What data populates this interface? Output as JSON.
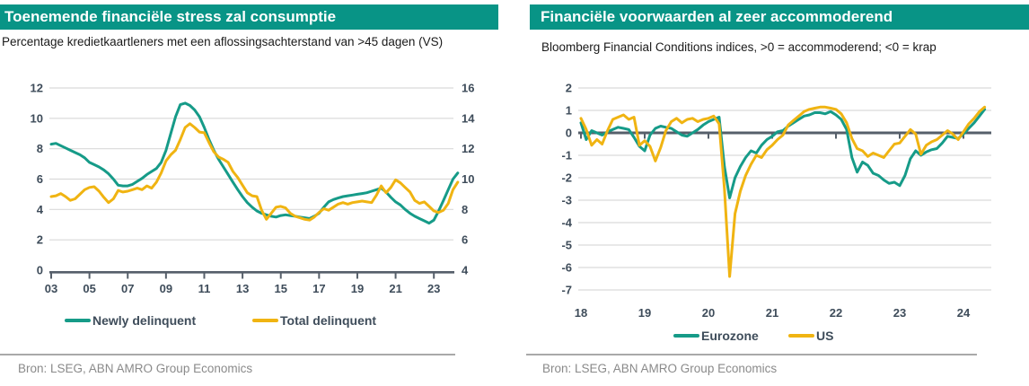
{
  "colors": {
    "brand_teal": "#089486",
    "series_teal": "#169B88",
    "series_yellow": "#F0B412",
    "grid": "#D9D9D9",
    "axis_dark": "#565F6A",
    "tick_label": "#3E4C5A",
    "subtitle_text": "#1A1A1A",
    "source_text": "#8A8A8A",
    "divider": "#A9A9A9",
    "title_text": "#FFFFFF"
  },
  "chart_data": [
    {
      "type": "line",
      "title": "Toenemende financiële stress zal consumptie",
      "subtitle": " Percentage kredietkaartleners met een aflossingsachterstand van >45 dagen (VS)",
      "source": "Bron: LSEG, ABN AMRO Group Economics",
      "legend_position": "bottom",
      "grid": true,
      "left_axis": {
        "min": 0,
        "max": 12,
        "ticks": [
          0,
          2,
          4,
          6,
          8,
          10,
          12
        ]
      },
      "right_axis": {
        "min": 4,
        "max": 16,
        "ticks": [
          4,
          6,
          8,
          10,
          12,
          14,
          16
        ]
      },
      "x_axis": {
        "min": 2003,
        "max": 2024.3,
        "tick_years": [
          2003,
          2005,
          2007,
          2009,
          2011,
          2013,
          2015,
          2017,
          2019,
          2021,
          2023
        ],
        "tick_labels": [
          "03",
          "05",
          "07",
          "09",
          "11",
          "13",
          "15",
          "17",
          "19",
          "21",
          "23"
        ]
      },
      "x": [
        2003,
        2003.25,
        2003.5,
        2003.75,
        2004,
        2004.25,
        2004.5,
        2004.75,
        2005,
        2005.25,
        2005.5,
        2005.75,
        2006,
        2006.25,
        2006.5,
        2006.75,
        2007,
        2007.25,
        2007.5,
        2007.75,
        2008,
        2008.25,
        2008.5,
        2008.75,
        2009,
        2009.25,
        2009.5,
        2009.75,
        2010,
        2010.25,
        2010.5,
        2010.75,
        2011,
        2011.25,
        2011.5,
        2011.75,
        2012,
        2012.25,
        2012.5,
        2012.75,
        2013,
        2013.25,
        2013.5,
        2013.75,
        2014,
        2014.25,
        2014.5,
        2014.75,
        2015,
        2015.25,
        2015.5,
        2015.75,
        2016,
        2016.25,
        2016.5,
        2016.75,
        2017,
        2017.25,
        2017.5,
        2017.75,
        2018,
        2018.25,
        2018.5,
        2018.75,
        2019,
        2019.25,
        2019.5,
        2019.75,
        2020,
        2020.25,
        2020.5,
        2020.75,
        2021,
        2021.25,
        2021.5,
        2021.75,
        2022,
        2022.25,
        2022.5,
        2022.75,
        2023,
        2023.25,
        2023.5,
        2023.75,
        2024,
        2024.25
      ],
      "series": [
        {
          "name": "Newly delinquent",
          "axis": "left",
          "color": "#169B88",
          "values": [
            8.3,
            8.35,
            8.2,
            8.05,
            7.9,
            7.75,
            7.6,
            7.4,
            7.1,
            6.95,
            6.8,
            6.6,
            6.35,
            6.0,
            5.6,
            5.55,
            5.55,
            5.65,
            5.85,
            6.05,
            6.3,
            6.5,
            6.7,
            7.1,
            7.9,
            9.0,
            10.1,
            10.9,
            11.0,
            10.85,
            10.55,
            10.1,
            9.4,
            8.6,
            7.9,
            7.3,
            6.8,
            6.3,
            5.8,
            5.3,
            4.85,
            4.45,
            4.15,
            3.9,
            3.75,
            3.65,
            3.55,
            3.5,
            3.6,
            3.65,
            3.6,
            3.55,
            3.5,
            3.45,
            3.4,
            3.55,
            3.75,
            4.15,
            4.5,
            4.65,
            4.75,
            4.85,
            4.9,
            4.95,
            5.0,
            5.05,
            5.1,
            5.2,
            5.3,
            5.4,
            5.15,
            4.8,
            4.5,
            4.3,
            4.0,
            3.75,
            3.55,
            3.4,
            3.25,
            3.1,
            3.3,
            3.9,
            4.6,
            5.3,
            6.0,
            6.4
          ]
        },
        {
          "name": "Total delinquent",
          "axis": "right",
          "color": "#F0B412",
          "values": [
            8.85,
            8.9,
            9.05,
            8.85,
            8.6,
            8.7,
            9.0,
            9.3,
            9.45,
            9.5,
            9.2,
            8.8,
            8.45,
            8.7,
            9.25,
            9.15,
            9.2,
            9.3,
            9.4,
            9.3,
            9.55,
            9.4,
            9.8,
            10.4,
            11.2,
            11.6,
            11.9,
            12.6,
            13.4,
            13.65,
            13.4,
            13.1,
            13.05,
            12.4,
            11.8,
            11.45,
            11.3,
            11.1,
            10.5,
            10.1,
            9.6,
            9.1,
            8.9,
            8.85,
            7.95,
            7.35,
            7.75,
            8.15,
            8.2,
            8.1,
            7.75,
            7.55,
            7.45,
            7.35,
            7.3,
            7.5,
            7.8,
            8.05,
            7.95,
            8.15,
            8.35,
            8.45,
            8.35,
            8.45,
            8.5,
            8.55,
            8.5,
            8.45,
            8.95,
            9.55,
            9.1,
            9.45,
            9.95,
            9.75,
            9.45,
            9.15,
            8.6,
            8.4,
            8.5,
            8.2,
            7.9,
            7.8,
            7.95,
            8.4,
            9.3,
            9.8
          ]
        }
      ]
    },
    {
      "type": "line",
      "title": "Financiële voorwaarden al zeer accommoderend",
      "subtitle": "Bloomberg Financial Conditions indices, >0 = accommoderend; <0 = krap",
      "source": "Bron: LSEG, ABN AMRO Group Economics",
      "legend_position": "bottom",
      "grid": true,
      "left_axis": {
        "min": -7,
        "max": 2,
        "ticks": [
          2,
          1,
          0,
          -1,
          -2,
          -3,
          -4,
          -5,
          -6,
          -7
        ],
        "zero_line": true
      },
      "x_axis": {
        "min": 2018,
        "max": 2024.45,
        "tick_years": [
          2018,
          2019,
          2020,
          2021,
          2022,
          2023,
          2024
        ],
        "tick_labels": [
          "18",
          "19",
          "20",
          "21",
          "22",
          "23",
          "24"
        ]
      },
      "x": [
        2018,
        2018.083,
        2018.167,
        2018.25,
        2018.333,
        2018.417,
        2018.5,
        2018.583,
        2018.667,
        2018.75,
        2018.833,
        2018.917,
        2019,
        2019.083,
        2019.167,
        2019.25,
        2019.333,
        2019.417,
        2019.5,
        2019.583,
        2019.667,
        2019.75,
        2019.833,
        2019.917,
        2020,
        2020.083,
        2020.167,
        2020.25,
        2020.333,
        2020.417,
        2020.5,
        2020.583,
        2020.667,
        2020.75,
        2020.833,
        2020.917,
        2021,
        2021.083,
        2021.167,
        2021.25,
        2021.333,
        2021.417,
        2021.5,
        2021.583,
        2021.667,
        2021.75,
        2021.833,
        2021.917,
        2022,
        2022.083,
        2022.167,
        2022.25,
        2022.333,
        2022.417,
        2022.5,
        2022.583,
        2022.667,
        2022.75,
        2022.833,
        2022.917,
        2023,
        2023.083,
        2023.167,
        2023.25,
        2023.333,
        2023.417,
        2023.5,
        2023.583,
        2023.667,
        2023.75,
        2023.833,
        2023.917,
        2024,
        2024.083,
        2024.167,
        2024.25,
        2024.333
      ],
      "series": [
        {
          "name": "Eurozone",
          "axis": "left",
          "color": "#169B88",
          "values": [
            0.45,
            -0.3,
            0.1,
            0,
            -0.1,
            0.05,
            0.15,
            0.25,
            0.2,
            0.15,
            -0.2,
            -0.6,
            -0.8,
            -0.1,
            0.2,
            0.3,
            0.25,
            0.2,
            0.05,
            -0.1,
            -0.15,
            0,
            0.15,
            0.35,
            0.5,
            0.6,
            0.7,
            -1.5,
            -2.9,
            -2,
            -1.5,
            -1.1,
            -0.8,
            -0.9,
            -0.55,
            -0.3,
            -0.15,
            0.05,
            0.1,
            0.3,
            0.45,
            0.6,
            0.75,
            0.8,
            0.9,
            0.9,
            0.85,
            0.95,
            0.8,
            0.6,
            0.15,
            -1.1,
            -1.75,
            -1.3,
            -1.45,
            -1.8,
            -1.9,
            -2.1,
            -2.25,
            -2.2,
            -2.35,
            -1.9,
            -1.15,
            -0.8,
            -1,
            -0.85,
            -0.75,
            -0.7,
            -0.45,
            -0.15,
            -0.2,
            -0.25,
            -0.05,
            0.2,
            0.45,
            0.75,
            1.05
          ]
        },
        {
          "name": "US",
          "axis": "left",
          "color": "#F0B412",
          "values": [
            0.65,
            0.15,
            -0.55,
            -0.3,
            -0.5,
            0.1,
            0.6,
            0.7,
            0.8,
            0.6,
            0.7,
            -0.55,
            -0.35,
            -0.6,
            -1.25,
            -0.65,
            0.1,
            0.5,
            0.65,
            0.45,
            0.6,
            0.65,
            0.5,
            0.6,
            0.65,
            0.75,
            0.4,
            -2.5,
            -6.4,
            -3.6,
            -2.6,
            -1.9,
            -1.4,
            -1,
            -1.1,
            -0.75,
            -0.55,
            -0.3,
            -0.1,
            0.35,
            0.55,
            0.75,
            0.95,
            1.05,
            1.1,
            1.15,
            1.15,
            1.1,
            1.05,
            0.85,
            0.45,
            -0.25,
            -0.7,
            -0.8,
            -1.05,
            -0.9,
            -1,
            -1.1,
            -0.8,
            -0.5,
            -0.45,
            -0.15,
            0.15,
            -0.05,
            -0.95,
            -0.55,
            -0.4,
            -0.3,
            -0.1,
            0.1,
            -0.05,
            -0.3,
            0.05,
            0.4,
            0.65,
            0.95,
            1.15
          ]
        }
      ]
    }
  ]
}
